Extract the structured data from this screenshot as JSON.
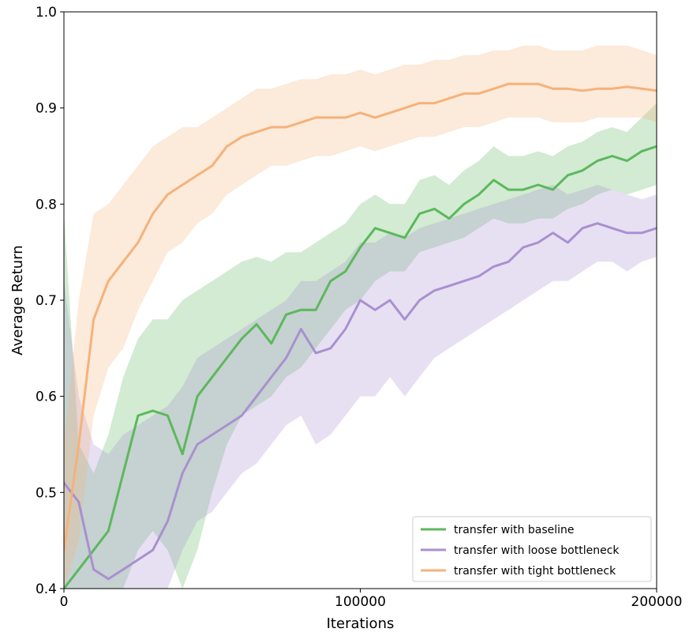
{
  "chart_data": {
    "type": "line",
    "title": "",
    "xlabel": "Iterations",
    "ylabel": "Average Return",
    "xlim": [
      0,
      200000
    ],
    "ylim": [
      0.4,
      1.0
    ],
    "x_ticks": [
      0,
      100000,
      200000
    ],
    "x_tick_labels": [
      "0",
      "100000",
      "200000"
    ],
    "y_ticks": [
      0.4,
      0.5,
      0.6,
      0.7,
      0.8,
      0.9,
      1.0
    ],
    "y_tick_labels": [
      "0.4",
      "0.5",
      "0.6",
      "0.7",
      "0.8",
      "0.9",
      "1.0"
    ],
    "grid": false,
    "legend_position": "bottom-right",
    "x": [
      0,
      5000,
      10000,
      15000,
      20000,
      25000,
      30000,
      35000,
      40000,
      45000,
      50000,
      55000,
      60000,
      65000,
      70000,
      75000,
      80000,
      85000,
      90000,
      95000,
      100000,
      105000,
      110000,
      115000,
      120000,
      125000,
      130000,
      135000,
      140000,
      145000,
      150000,
      155000,
      160000,
      165000,
      170000,
      175000,
      180000,
      185000,
      190000,
      195000,
      200000
    ],
    "series": [
      {
        "name": "transfer with baseline",
        "color": "#5cb85c",
        "values": [
          0.4,
          0.42,
          0.44,
          0.46,
          0.52,
          0.58,
          0.585,
          0.58,
          0.54,
          0.6,
          0.62,
          0.64,
          0.66,
          0.675,
          0.655,
          0.685,
          0.69,
          0.69,
          0.72,
          0.73,
          0.755,
          0.775,
          0.77,
          0.765,
          0.79,
          0.795,
          0.785,
          0.8,
          0.81,
          0.825,
          0.815,
          0.815,
          0.82,
          0.815,
          0.83,
          0.835,
          0.845,
          0.85,
          0.845,
          0.855,
          0.86
        ],
        "lower": [
          0.38,
          0.38,
          0.36,
          0.36,
          0.4,
          0.44,
          0.46,
          0.44,
          0.4,
          0.44,
          0.5,
          0.55,
          0.58,
          0.59,
          0.6,
          0.62,
          0.63,
          0.65,
          0.67,
          0.69,
          0.7,
          0.72,
          0.73,
          0.73,
          0.75,
          0.755,
          0.76,
          0.765,
          0.775,
          0.785,
          0.78,
          0.78,
          0.785,
          0.785,
          0.795,
          0.8,
          0.81,
          0.815,
          0.81,
          0.815,
          0.82
        ],
        "upper": [
          0.79,
          0.55,
          0.52,
          0.56,
          0.62,
          0.66,
          0.68,
          0.68,
          0.7,
          0.71,
          0.72,
          0.73,
          0.74,
          0.745,
          0.74,
          0.75,
          0.75,
          0.76,
          0.77,
          0.78,
          0.8,
          0.81,
          0.8,
          0.8,
          0.825,
          0.83,
          0.82,
          0.835,
          0.845,
          0.86,
          0.85,
          0.85,
          0.855,
          0.85,
          0.86,
          0.865,
          0.875,
          0.88,
          0.875,
          0.89,
          0.905
        ]
      },
      {
        "name": "transfer with loose bottleneck",
        "color": "#a990cf",
        "values": [
          0.51,
          0.49,
          0.42,
          0.41,
          0.42,
          0.43,
          0.44,
          0.47,
          0.52,
          0.55,
          0.56,
          0.57,
          0.58,
          0.6,
          0.62,
          0.64,
          0.67,
          0.645,
          0.65,
          0.67,
          0.7,
          0.69,
          0.7,
          0.68,
          0.7,
          0.71,
          0.715,
          0.72,
          0.725,
          0.735,
          0.74,
          0.755,
          0.76,
          0.77,
          0.76,
          0.775,
          0.78,
          0.775,
          0.77,
          0.77,
          0.775
        ],
        "lower": [
          0.4,
          0.38,
          0.36,
          0.34,
          0.35,
          0.36,
          0.38,
          0.4,
          0.44,
          0.47,
          0.48,
          0.5,
          0.52,
          0.53,
          0.55,
          0.57,
          0.58,
          0.55,
          0.56,
          0.58,
          0.6,
          0.6,
          0.62,
          0.6,
          0.62,
          0.64,
          0.65,
          0.66,
          0.67,
          0.68,
          0.69,
          0.7,
          0.71,
          0.72,
          0.72,
          0.73,
          0.74,
          0.74,
          0.73,
          0.74,
          0.745
        ],
        "upper": [
          0.72,
          0.6,
          0.55,
          0.54,
          0.56,
          0.57,
          0.58,
          0.59,
          0.61,
          0.64,
          0.65,
          0.66,
          0.67,
          0.68,
          0.69,
          0.7,
          0.72,
          0.72,
          0.73,
          0.74,
          0.76,
          0.76,
          0.77,
          0.765,
          0.775,
          0.78,
          0.785,
          0.79,
          0.795,
          0.8,
          0.805,
          0.81,
          0.815,
          0.82,
          0.81,
          0.815,
          0.82,
          0.815,
          0.81,
          0.805,
          0.81
        ]
      },
      {
        "name": "transfer with tight bottleneck",
        "color": "#f5b27a",
        "values": [
          0.44,
          0.55,
          0.68,
          0.72,
          0.74,
          0.76,
          0.79,
          0.81,
          0.82,
          0.83,
          0.84,
          0.86,
          0.87,
          0.875,
          0.88,
          0.88,
          0.885,
          0.89,
          0.89,
          0.89,
          0.895,
          0.89,
          0.895,
          0.9,
          0.905,
          0.905,
          0.91,
          0.915,
          0.915,
          0.92,
          0.925,
          0.925,
          0.925,
          0.92,
          0.92,
          0.918,
          0.92,
          0.92,
          0.922,
          0.92,
          0.918
        ],
        "lower": [
          0.4,
          0.45,
          0.58,
          0.63,
          0.65,
          0.69,
          0.72,
          0.75,
          0.76,
          0.78,
          0.79,
          0.81,
          0.82,
          0.83,
          0.84,
          0.84,
          0.845,
          0.85,
          0.85,
          0.855,
          0.86,
          0.855,
          0.86,
          0.865,
          0.87,
          0.87,
          0.875,
          0.88,
          0.88,
          0.885,
          0.89,
          0.89,
          0.89,
          0.885,
          0.885,
          0.885,
          0.89,
          0.89,
          0.89,
          0.89,
          0.885
        ],
        "upper": [
          0.55,
          0.7,
          0.79,
          0.8,
          0.82,
          0.84,
          0.86,
          0.87,
          0.88,
          0.88,
          0.89,
          0.9,
          0.91,
          0.92,
          0.92,
          0.925,
          0.93,
          0.93,
          0.935,
          0.935,
          0.94,
          0.935,
          0.94,
          0.945,
          0.945,
          0.95,
          0.95,
          0.955,
          0.955,
          0.96,
          0.96,
          0.965,
          0.965,
          0.96,
          0.96,
          0.96,
          0.965,
          0.965,
          0.965,
          0.96,
          0.955
        ]
      }
    ]
  }
}
